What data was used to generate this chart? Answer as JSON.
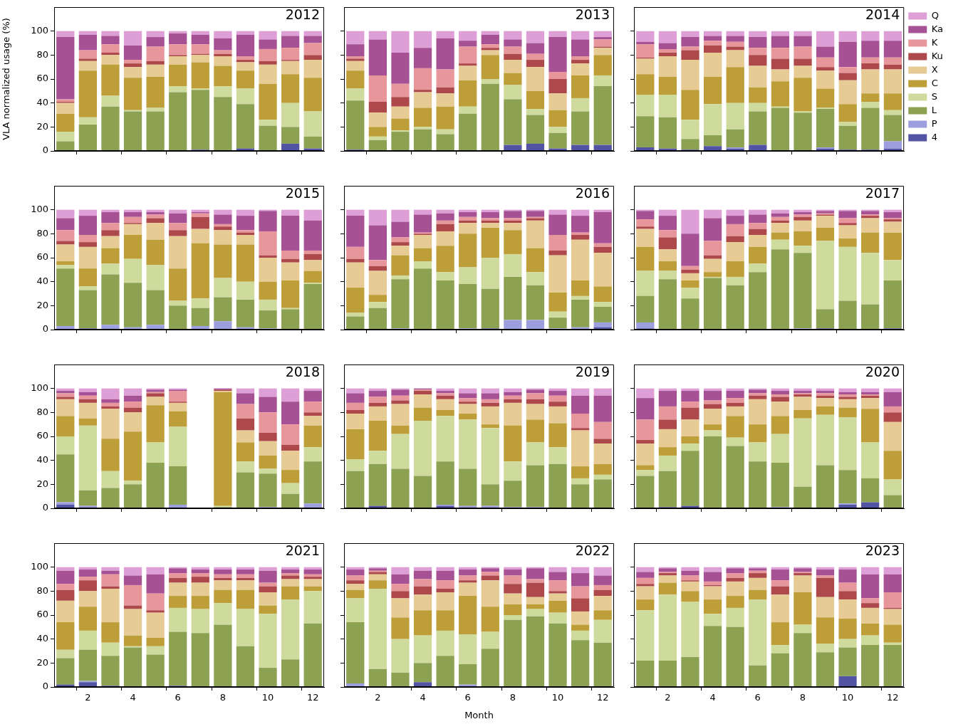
{
  "chart_data": [
    {
      "type": "bar",
      "title": "2012",
      "ylabel": "VLA normalized usage (%)",
      "categories": [
        null,
        "2",
        null,
        "4",
        null,
        "6",
        null,
        "8",
        null,
        "10",
        null,
        "12"
      ],
      "ylim": [
        0,
        120
      ],
      "yticks": [
        0,
        20,
        40,
        60,
        80,
        100
      ],
      "stacked": true,
      "tick_labels": "y",
      "series": [
        {
          "color": "#5254a3",
          "values": [
            0,
            0,
            0,
            0,
            0,
            0,
            1,
            0,
            2,
            0,
            6,
            2
          ]
        },
        {
          "color": "#9c9ede",
          "values": [
            0,
            0,
            0,
            0,
            0,
            0,
            0,
            0,
            0,
            0,
            0,
            0
          ]
        },
        {
          "color": "#8ca252",
          "values": [
            8,
            22,
            37,
            33,
            33,
            49,
            50,
            45,
            37,
            21,
            14,
            10
          ]
        },
        {
          "color": "#cedb9c",
          "values": [
            8,
            6,
            9,
            1,
            3,
            5,
            1,
            9,
            13,
            5,
            20,
            21
          ]
        },
        {
          "color": "#bd9e39",
          "values": [
            15,
            39,
            26,
            27,
            26,
            18,
            22,
            17,
            15,
            30,
            24,
            28
          ]
        },
        {
          "color": "#e7cb94",
          "values": [
            9,
            8,
            8,
            9,
            10,
            7,
            6,
            8,
            7,
            16,
            11,
            15
          ]
        },
        {
          "color": "#ad494a",
          "values": [
            1,
            2,
            2,
            3,
            3,
            1,
            1,
            2,
            2,
            3,
            1,
            4
          ]
        },
        {
          "color": "#e7969c",
          "values": [
            2,
            7,
            7,
            3,
            12,
            9,
            8,
            3,
            3,
            10,
            10,
            10
          ]
        },
        {
          "color": "#a55194",
          "values": [
            52,
            13,
            7,
            12,
            8,
            9,
            8,
            10,
            18,
            8,
            10,
            6
          ]
        },
        {
          "color": "#de9ed6",
          "values": [
            5,
            3,
            4,
            12,
            5,
            2,
            3,
            6,
            3,
            7,
            4,
            4
          ]
        }
      ]
    },
    {
      "type": "bar",
      "title": "2013",
      "categories": [
        null,
        "2",
        null,
        "4",
        null,
        "6",
        null,
        "8",
        null,
        "10",
        null,
        "12"
      ],
      "ylim": [
        0,
        120
      ],
      "yticks": [
        0,
        20,
        40,
        60,
        80,
        100
      ],
      "stacked": true,
      "tick_labels": false,
      "series": [
        {
          "color": "#5254a3",
          "values": [
            1,
            0,
            0,
            0,
            0,
            0,
            0,
            5,
            6,
            2,
            5,
            5
          ]
        },
        {
          "color": "#9c9ede",
          "values": [
            0,
            0,
            0,
            0,
            0,
            0,
            0,
            0,
            0,
            0,
            0,
            0
          ]
        },
        {
          "color": "#8ca252",
          "values": [
            41,
            9,
            16,
            18,
            14,
            31,
            56,
            38,
            24,
            13,
            28,
            49
          ]
        },
        {
          "color": "#cedb9c",
          "values": [
            10,
            3,
            1,
            2,
            4,
            6,
            4,
            12,
            5,
            5,
            11,
            9
          ]
        },
        {
          "color": "#bd9e39",
          "values": [
            15,
            8,
            10,
            16,
            19,
            22,
            20,
            10,
            15,
            14,
            19,
            17
          ]
        },
        {
          "color": "#e7cb94",
          "values": [
            8,
            12,
            10,
            13,
            11,
            12,
            4,
            11,
            20,
            14,
            10,
            6
          ]
        },
        {
          "color": "#ad494a",
          "values": [
            2,
            9,
            8,
            2,
            5,
            2,
            2,
            5,
            6,
            12,
            3,
            1
          ]
        },
        {
          "color": "#e7969c",
          "values": [
            2,
            22,
            11,
            18,
            15,
            14,
            3,
            6,
            5,
            6,
            3,
            6
          ]
        },
        {
          "color": "#a55194",
          "values": [
            10,
            30,
            26,
            17,
            26,
            5,
            8,
            6,
            9,
            29,
            14,
            2
          ]
        },
        {
          "color": "#de9ed6",
          "values": [
            11,
            7,
            18,
            14,
            6,
            8,
            3,
            7,
            10,
            5,
            7,
            5
          ]
        }
      ]
    },
    {
      "type": "bar",
      "title": "2014",
      "categories": [
        null,
        "2",
        null,
        "4",
        null,
        "6",
        null,
        "8",
        null,
        "10",
        null,
        "12"
      ],
      "ylim": [
        0,
        120
      ],
      "yticks": [
        0,
        20,
        40,
        60,
        80,
        100
      ],
      "stacked": true,
      "tick_labels": false,
      "legend": "right",
      "series": [
        {
          "name": "4",
          "color": "#5254a3",
          "values": [
            3,
            2,
            1,
            4,
            2,
            5,
            0,
            0,
            2,
            1,
            1,
            2
          ]
        },
        {
          "name": "P",
          "color": "#9c9ede",
          "values": [
            0,
            0,
            0,
            0,
            1,
            0,
            0,
            0,
            1,
            0,
            0,
            6
          ]
        },
        {
          "name": "L",
          "color": "#8ca252",
          "values": [
            26,
            26,
            9,
            9,
            15,
            28,
            36,
            32,
            32,
            20,
            35,
            22
          ]
        },
        {
          "name": "S",
          "color": "#cedb9c",
          "values": [
            18,
            19,
            16,
            26,
            22,
            7,
            1,
            1,
            1,
            3,
            5,
            4
          ]
        },
        {
          "name": "C",
          "color": "#bd9e39",
          "values": [
            17,
            15,
            25,
            23,
            30,
            13,
            21,
            28,
            16,
            15,
            7,
            14
          ]
        },
        {
          "name": "X",
          "color": "#e7cb94",
          "values": [
            13,
            17,
            25,
            20,
            14,
            18,
            10,
            10,
            15,
            20,
            20,
            20
          ]
        },
        {
          "name": "Ku",
          "color": "#ad494a",
          "values": [
            1,
            3,
            8,
            6,
            3,
            9,
            9,
            6,
            3,
            6,
            5,
            4
          ]
        },
        {
          "name": "K",
          "color": "#e7969c",
          "values": [
            11,
            3,
            3,
            4,
            4,
            6,
            9,
            10,
            8,
            5,
            5,
            6
          ]
        },
        {
          "name": "Ka",
          "color": "#a55194",
          "values": [
            2,
            5,
            8,
            4,
            5,
            9,
            10,
            9,
            9,
            21,
            14,
            14
          ]
        },
        {
          "name": "Q",
          "color": "#de9ed6",
          "values": [
            9,
            10,
            5,
            4,
            4,
            5,
            4,
            4,
            13,
            9,
            8,
            8
          ]
        }
      ]
    },
    {
      "type": "bar",
      "title": "2015",
      "categories": [
        null,
        "2",
        null,
        "4",
        null,
        "6",
        null,
        "8",
        null,
        "10",
        null,
        "12"
      ],
      "ylim": [
        0,
        120
      ],
      "yticks": [
        0,
        20,
        40,
        60,
        80,
        100
      ],
      "stacked": true,
      "tick_labels": "y",
      "series": [
        {
          "color": "#5254a3",
          "values": [
            0,
            1,
            0,
            0,
            0,
            0,
            0,
            0,
            0,
            0,
            0,
            0
          ]
        },
        {
          "color": "#9c9ede",
          "values": [
            3,
            0,
            4,
            2,
            4,
            0,
            3,
            7,
            2,
            1,
            0,
            0
          ]
        },
        {
          "color": "#8ca252",
          "values": [
            48,
            32,
            42,
            37,
            29,
            20,
            15,
            20,
            23,
            15,
            17,
            38
          ]
        },
        {
          "color": "#cedb9c",
          "values": [
            3,
            3,
            9,
            20,
            21,
            4,
            8,
            16,
            15,
            9,
            1,
            1
          ]
        },
        {
          "color": "#bd9e39",
          "values": [
            3,
            15,
            13,
            20,
            21,
            27,
            46,
            28,
            31,
            15,
            23,
            10
          ]
        },
        {
          "color": "#e7cb94",
          "values": [
            14,
            18,
            10,
            9,
            14,
            27,
            12,
            12,
            8,
            20,
            15,
            9
          ]
        },
        {
          "color": "#ad494a",
          "values": [
            3,
            4,
            5,
            1,
            4,
            5,
            10,
            3,
            2,
            2,
            3,
            5
          ]
        },
        {
          "color": "#e7969c",
          "values": [
            9,
            6,
            6,
            5,
            3,
            6,
            3,
            2,
            2,
            20,
            7,
            3
          ]
        },
        {
          "color": "#a55194",
          "values": [
            10,
            16,
            9,
            4,
            2,
            8,
            1,
            8,
            12,
            17,
            29,
            25
          ]
        },
        {
          "color": "#de9ed6",
          "values": [
            7,
            5,
            2,
            2,
            2,
            3,
            2,
            4,
            5,
            1,
            5,
            9
          ]
        }
      ]
    },
    {
      "type": "bar",
      "title": "2016",
      "categories": [
        null,
        "2",
        null,
        "4",
        null,
        "6",
        null,
        "8",
        null,
        "10",
        null,
        "12"
      ],
      "ylim": [
        0,
        120
      ],
      "yticks": [
        0,
        20,
        40,
        60,
        80,
        100
      ],
      "stacked": true,
      "tick_labels": false,
      "series": [
        {
          "color": "#5254a3",
          "values": [
            0,
            0,
            0,
            0,
            0,
            0,
            1,
            0,
            0,
            0,
            0,
            2
          ]
        },
        {
          "color": "#9c9ede",
          "values": [
            0,
            0,
            1,
            0,
            0,
            1,
            0,
            8,
            8,
            1,
            2,
            4
          ]
        },
        {
          "color": "#8ca252",
          "values": [
            11,
            18,
            41,
            51,
            41,
            37,
            33,
            36,
            29,
            9,
            23,
            13
          ]
        },
        {
          "color": "#cedb9c",
          "values": [
            3,
            5,
            3,
            6,
            7,
            14,
            26,
            19,
            11,
            5,
            3,
            4
          ]
        },
        {
          "color": "#bd9e39",
          "values": [
            21,
            6,
            17,
            11,
            22,
            28,
            25,
            20,
            20,
            16,
            13,
            13
          ]
        },
        {
          "color": "#e7cb94",
          "values": [
            21,
            20,
            8,
            11,
            12,
            9,
            4,
            6,
            23,
            31,
            34,
            28
          ]
        },
        {
          "color": "#ad494a",
          "values": [
            3,
            4,
            3,
            1,
            6,
            2,
            2,
            2,
            2,
            4,
            4,
            5
          ]
        },
        {
          "color": "#e7969c",
          "values": [
            10,
            5,
            4,
            1,
            3,
            3,
            2,
            2,
            1,
            13,
            2,
            3
          ]
        },
        {
          "color": "#a55194",
          "values": [
            26,
            29,
            13,
            15,
            6,
            4,
            5,
            6,
            5,
            17,
            14,
            26
          ]
        },
        {
          "color": "#de9ed6",
          "values": [
            5,
            13,
            10,
            4,
            3,
            2,
            2,
            1,
            1,
            4,
            5,
            2
          ]
        }
      ]
    },
    {
      "type": "bar",
      "title": "2017",
      "categories": [
        null,
        "2",
        null,
        "4",
        null,
        "6",
        null,
        "8",
        null,
        "10",
        null,
        "12"
      ],
      "ylim": [
        0,
        120
      ],
      "yticks": [
        0,
        20,
        40,
        60,
        80,
        100
      ],
      "stacked": true,
      "tick_labels": false,
      "series": [
        {
          "color": "#5254a3",
          "values": [
            1,
            0,
            0,
            0,
            0,
            0,
            0,
            0,
            1,
            0,
            0,
            1
          ]
        },
        {
          "color": "#9c9ede",
          "values": [
            5,
            0,
            0,
            0,
            0,
            0,
            0,
            1,
            0,
            0,
            0,
            0
          ]
        },
        {
          "color": "#8ca252",
          "values": [
            22,
            42,
            26,
            43,
            37,
            48,
            67,
            63,
            16,
            24,
            21,
            40
          ]
        },
        {
          "color": "#cedb9c",
          "values": [
            21,
            7,
            9,
            1,
            7,
            7,
            8,
            6,
            57,
            45,
            43,
            17
          ]
        },
        {
          "color": "#bd9e39",
          "values": [
            20,
            8,
            6,
            4,
            13,
            14,
            6,
            12,
            11,
            7,
            17,
            23
          ]
        },
        {
          "color": "#e7cb94",
          "values": [
            15,
            10,
            6,
            11,
            16,
            10,
            8,
            9,
            10,
            11,
            12,
            9
          ]
        },
        {
          "color": "#ad494a",
          "values": [
            2,
            10,
            3,
            3,
            5,
            5,
            2,
            3,
            1,
            2,
            2,
            2
          ]
        },
        {
          "color": "#e7969c",
          "values": [
            6,
            6,
            3,
            12,
            10,
            5,
            3,
            2,
            1,
            4,
            1,
            1
          ]
        },
        {
          "color": "#a55194",
          "values": [
            7,
            12,
            27,
            19,
            7,
            7,
            3,
            2,
            2,
            6,
            3,
            5
          ]
        },
        {
          "color": "#de9ed6",
          "values": [
            1,
            5,
            20,
            7,
            5,
            4,
            3,
            2,
            1,
            1,
            1,
            2
          ]
        }
      ]
    },
    {
      "type": "bar",
      "title": "2018",
      "categories": [
        null,
        "2",
        null,
        "4",
        null,
        "6",
        null,
        "8",
        null,
        "10",
        null,
        "12"
      ],
      "ylim": [
        0,
        120
      ],
      "yticks": [
        0,
        20,
        40,
        60,
        80,
        100
      ],
      "stacked": true,
      "tick_labels": "y",
      "series": [
        {
          "color": "#5254a3",
          "values": [
            3,
            0,
            0,
            0,
            0,
            0,
            null,
            0,
            0,
            0,
            0,
            0
          ]
        },
        {
          "color": "#9c9ede",
          "values": [
            2,
            2,
            0,
            0,
            0,
            3,
            null,
            0,
            0,
            1,
            0,
            4
          ]
        },
        {
          "color": "#8ca252",
          "values": [
            40,
            13,
            17,
            20,
            38,
            32,
            null,
            1,
            30,
            28,
            12,
            35
          ]
        },
        {
          "color": "#cedb9c",
          "values": [
            15,
            54,
            14,
            3,
            17,
            33,
            null,
            1,
            9,
            4,
            9,
            12
          ]
        },
        {
          "color": "#bd9e39",
          "values": [
            17,
            6,
            27,
            41,
            31,
            13,
            null,
            95,
            16,
            11,
            11,
            18
          ]
        },
        {
          "color": "#e7cb94",
          "values": [
            14,
            13,
            25,
            16,
            7,
            7,
            null,
            1,
            10,
            12,
            16,
            8
          ]
        },
        {
          "color": "#ad494a",
          "values": [
            2,
            3,
            2,
            4,
            3,
            1,
            null,
            1,
            10,
            7,
            5,
            3
          ]
        },
        {
          "color": "#e7969c",
          "values": [
            3,
            3,
            3,
            5,
            1,
            9,
            null,
            0,
            12,
            17,
            17,
            9
          ]
        },
        {
          "color": "#a55194",
          "values": [
            2,
            3,
            3,
            5,
            2,
            1,
            null,
            1,
            9,
            13,
            19,
            9
          ]
        },
        {
          "color": "#de9ed6",
          "values": [
            2,
            3,
            9,
            6,
            1,
            1,
            null,
            0,
            4,
            7,
            11,
            2
          ]
        }
      ]
    },
    {
      "type": "bar",
      "title": "2019",
      "categories": [
        null,
        "2",
        null,
        "4",
        null,
        "6",
        null,
        "8",
        null,
        "10",
        null,
        "12"
      ],
      "ylim": [
        0,
        120
      ],
      "yticks": [
        0,
        20,
        40,
        60,
        80,
        100
      ],
      "stacked": true,
      "tick_labels": false,
      "series": [
        {
          "color": "#5254a3",
          "values": [
            0,
            2,
            0,
            0,
            2,
            0,
            0,
            0,
            0,
            0,
            0,
            0
          ]
        },
        {
          "color": "#9c9ede",
          "values": [
            0,
            0,
            0,
            0,
            1,
            2,
            2,
            1,
            1,
            0,
            0,
            0
          ]
        },
        {
          "color": "#8ca252",
          "values": [
            31,
            35,
            33,
            27,
            36,
            31,
            18,
            22,
            35,
            37,
            20,
            24
          ]
        },
        {
          "color": "#cedb9c",
          "values": [
            10,
            11,
            29,
            46,
            38,
            41,
            47,
            16,
            19,
            14,
            5,
            4
          ]
        },
        {
          "color": "#bd9e39",
          "values": [
            25,
            25,
            7,
            11,
            5,
            5,
            3,
            30,
            19,
            20,
            10,
            9
          ]
        },
        {
          "color": "#e7cb94",
          "values": [
            13,
            12,
            18,
            11,
            9,
            8,
            15,
            19,
            13,
            14,
            30,
            17
          ]
        },
        {
          "color": "#ad494a",
          "values": [
            3,
            3,
            3,
            3,
            3,
            2,
            3,
            3,
            4,
            4,
            2,
            4
          ]
        },
        {
          "color": "#e7969c",
          "values": [
            6,
            5,
            4,
            1,
            2,
            3,
            3,
            3,
            5,
            5,
            12,
            14
          ]
        },
        {
          "color": "#a55194",
          "values": [
            8,
            5,
            5,
            1,
            2,
            4,
            5,
            3,
            3,
            4,
            15,
            22
          ]
        },
        {
          "color": "#de9ed6",
          "values": [
            4,
            2,
            1,
            0,
            2,
            4,
            4,
            3,
            1,
            2,
            6,
            6
          ]
        }
      ]
    },
    {
      "type": "bar",
      "title": "2020",
      "categories": [
        null,
        "2",
        null,
        "4",
        null,
        "6",
        null,
        "8",
        null,
        "10",
        null,
        "12"
      ],
      "ylim": [
        0,
        120
      ],
      "yticks": [
        0,
        20,
        40,
        60,
        80,
        100
      ],
      "stacked": true,
      "tick_labels": false,
      "series": [
        {
          "color": "#5254a3",
          "values": [
            0,
            1,
            2,
            0,
            0,
            0,
            0,
            0,
            0,
            3,
            5,
            0
          ]
        },
        {
          "color": "#9c9ede",
          "values": [
            0,
            0,
            0,
            0,
            0,
            0,
            1,
            0,
            0,
            1,
            0,
            0
          ]
        },
        {
          "color": "#8ca252",
          "values": [
            27,
            30,
            46,
            60,
            52,
            39,
            37,
            18,
            36,
            28,
            20,
            11
          ]
        },
        {
          "color": "#cedb9c",
          "values": [
            5,
            13,
            6,
            5,
            7,
            16,
            24,
            57,
            42,
            44,
            30,
            13
          ]
        },
        {
          "color": "#bd9e39",
          "values": [
            4,
            7,
            6,
            5,
            18,
            15,
            15,
            7,
            7,
            8,
            28,
            24
          ]
        },
        {
          "color": "#e7cb94",
          "values": [
            18,
            15,
            14,
            13,
            8,
            21,
            12,
            11,
            7,
            7,
            9,
            24
          ]
        },
        {
          "color": "#ad494a",
          "values": [
            3,
            8,
            10,
            4,
            3,
            3,
            4,
            2,
            2,
            2,
            2,
            8
          ]
        },
        {
          "color": "#e7969c",
          "values": [
            17,
            11,
            5,
            3,
            4,
            2,
            2,
            1,
            2,
            2,
            1,
            5
          ]
        },
        {
          "color": "#a55194",
          "values": [
            18,
            13,
            9,
            8,
            6,
            3,
            3,
            2,
            2,
            2,
            2,
            12
          ]
        },
        {
          "color": "#de9ed6",
          "values": [
            8,
            2,
            2,
            2,
            2,
            1,
            2,
            2,
            2,
            3,
            3,
            3
          ]
        }
      ]
    },
    {
      "type": "bar",
      "title": "2021",
      "categories": [
        null,
        "2",
        null,
        "4",
        null,
        "6",
        null,
        "8",
        null,
        "10",
        null,
        "12"
      ],
      "ylim": [
        0,
        120
      ],
      "yticks": [
        0,
        20,
        40,
        60,
        80,
        100
      ],
      "stacked": true,
      "series": [
        {
          "color": "#5254a3",
          "values": [
            2,
            4,
            1,
            0,
            0,
            1,
            0,
            0,
            0,
            0,
            0,
            0
          ]
        },
        {
          "color": "#9c9ede",
          "values": [
            0,
            1,
            0,
            0,
            0,
            0,
            0,
            0,
            0,
            0,
            0,
            0
          ]
        },
        {
          "color": "#8ca252",
          "values": [
            22,
            26,
            25,
            33,
            27,
            45,
            45,
            52,
            34,
            16,
            23,
            53
          ]
        },
        {
          "color": "#cedb9c",
          "values": [
            7,
            16,
            11,
            1,
            7,
            20,
            20,
            18,
            31,
            45,
            50,
            27
          ]
        },
        {
          "color": "#bd9e39",
          "values": [
            23,
            20,
            17,
            9,
            7,
            10,
            11,
            11,
            16,
            7,
            11,
            4
          ]
        },
        {
          "color": "#e7cb94",
          "values": [
            18,
            13,
            28,
            22,
            21,
            11,
            11,
            8,
            8,
            11,
            6,
            6
          ]
        },
        {
          "color": "#ad494a",
          "values": [
            9,
            9,
            2,
            3,
            2,
            4,
            5,
            2,
            2,
            5,
            3,
            2
          ]
        },
        {
          "color": "#e7969c",
          "values": [
            5,
            3,
            10,
            17,
            14,
            4,
            3,
            3,
            3,
            3,
            2,
            2
          ]
        },
        {
          "color": "#a55194",
          "values": [
            11,
            6,
            3,
            8,
            16,
            4,
            3,
            4,
            4,
            10,
            3,
            4
          ]
        },
        {
          "color": "#de9ed6",
          "values": [
            3,
            2,
            3,
            7,
            6,
            1,
            2,
            2,
            2,
            3,
            2,
            2
          ]
        }
      ]
    },
    {
      "type": "bar",
      "title": "2022",
      "xlabel": "Month",
      "categories": [
        null,
        "2",
        null,
        "4",
        null,
        "6",
        null,
        "8",
        null,
        "10",
        null,
        "12"
      ],
      "ylim": [
        0,
        120
      ],
      "yticks": [
        0,
        20,
        40,
        60,
        80,
        100
      ],
      "stacked": true,
      "tick_labels": "x",
      "series": [
        {
          "color": "#5254a3",
          "values": [
            0,
            0,
            0,
            4,
            0,
            0,
            0,
            0,
            0,
            0,
            0,
            0
          ]
        },
        {
          "color": "#9c9ede",
          "values": [
            3,
            0,
            0,
            0,
            0,
            2,
            0,
            0,
            0,
            0,
            0,
            0
          ]
        },
        {
          "color": "#8ca252",
          "values": [
            51,
            15,
            12,
            16,
            26,
            17,
            32,
            56,
            59,
            53,
            39,
            37
          ]
        },
        {
          "color": "#cedb9c",
          "values": [
            20,
            67,
            28,
            23,
            21,
            25,
            14,
            4,
            6,
            9,
            8,
            19
          ]
        },
        {
          "color": "#bd9e39",
          "values": [
            7,
            7,
            18,
            21,
            17,
            32,
            21,
            9,
            4,
            10,
            5,
            8
          ]
        },
        {
          "color": "#e7cb94",
          "values": [
            5,
            5,
            16,
            13,
            15,
            11,
            22,
            9,
            6,
            6,
            11,
            12
          ]
        },
        {
          "color": "#ad494a",
          "values": [
            3,
            2,
            6,
            7,
            3,
            2,
            4,
            8,
            12,
            2,
            11,
            5
          ]
        },
        {
          "color": "#e7969c",
          "values": [
            4,
            1,
            6,
            6,
            7,
            4,
            3,
            7,
            3,
            9,
            10,
            4
          ]
        },
        {
          "color": "#a55194",
          "values": [
            5,
            2,
            8,
            7,
            8,
            5,
            3,
            5,
            9,
            7,
            11,
            8
          ]
        },
        {
          "color": "#de9ed6",
          "values": [
            2,
            1,
            6,
            3,
            3,
            2,
            1,
            2,
            1,
            4,
            5,
            7
          ]
        }
      ]
    },
    {
      "type": "bar",
      "title": "2023",
      "categories": [
        null,
        "2",
        null,
        "4",
        null,
        "6",
        null,
        "8",
        null,
        "10",
        null,
        "12"
      ],
      "ylim": [
        0,
        120
      ],
      "yticks": [
        0,
        20,
        40,
        60,
        80,
        100
      ],
      "stacked": true,
      "tick_labels": "x",
      "series": [
        {
          "color": "#5254a3",
          "values": [
            0,
            0,
            0,
            0,
            0,
            0,
            0,
            0,
            0,
            9,
            0,
            0
          ]
        },
        {
          "color": "#9c9ede",
          "values": [
            0,
            0,
            0,
            0,
            0,
            0,
            0,
            0,
            0,
            0,
            0,
            0
          ]
        },
        {
          "color": "#8ca252",
          "values": [
            22,
            22,
            25,
            51,
            50,
            18,
            28,
            45,
            29,
            24,
            35,
            35
          ]
        },
        {
          "color": "#cedb9c",
          "values": [
            42,
            55,
            46,
            10,
            16,
            55,
            7,
            7,
            7,
            7,
            8,
            2
          ]
        },
        {
          "color": "#bd9e39",
          "values": [
            9,
            10,
            9,
            12,
            10,
            8,
            19,
            27,
            22,
            17,
            10,
            15
          ]
        },
        {
          "color": "#e7cb94",
          "values": [
            11,
            6,
            8,
            11,
            12,
            10,
            23,
            14,
            17,
            16,
            13,
            13
          ]
        },
        {
          "color": "#ad494a",
          "values": [
            2,
            2,
            1,
            1,
            3,
            4,
            7,
            2,
            16,
            7,
            4,
            1
          ]
        },
        {
          "color": "#e7969c",
          "values": [
            5,
            1,
            4,
            3,
            4,
            2,
            5,
            1,
            2,
            7,
            4,
            13
          ]
        },
        {
          "color": "#a55194",
          "values": [
            5,
            3,
            4,
            8,
            4,
            2,
            9,
            3,
            5,
            11,
            20,
            15
          ]
        },
        {
          "color": "#de9ed6",
          "values": [
            4,
            1,
            3,
            4,
            1,
            1,
            2,
            1,
            2,
            2,
            6,
            6
          ]
        }
      ]
    }
  ]
}
